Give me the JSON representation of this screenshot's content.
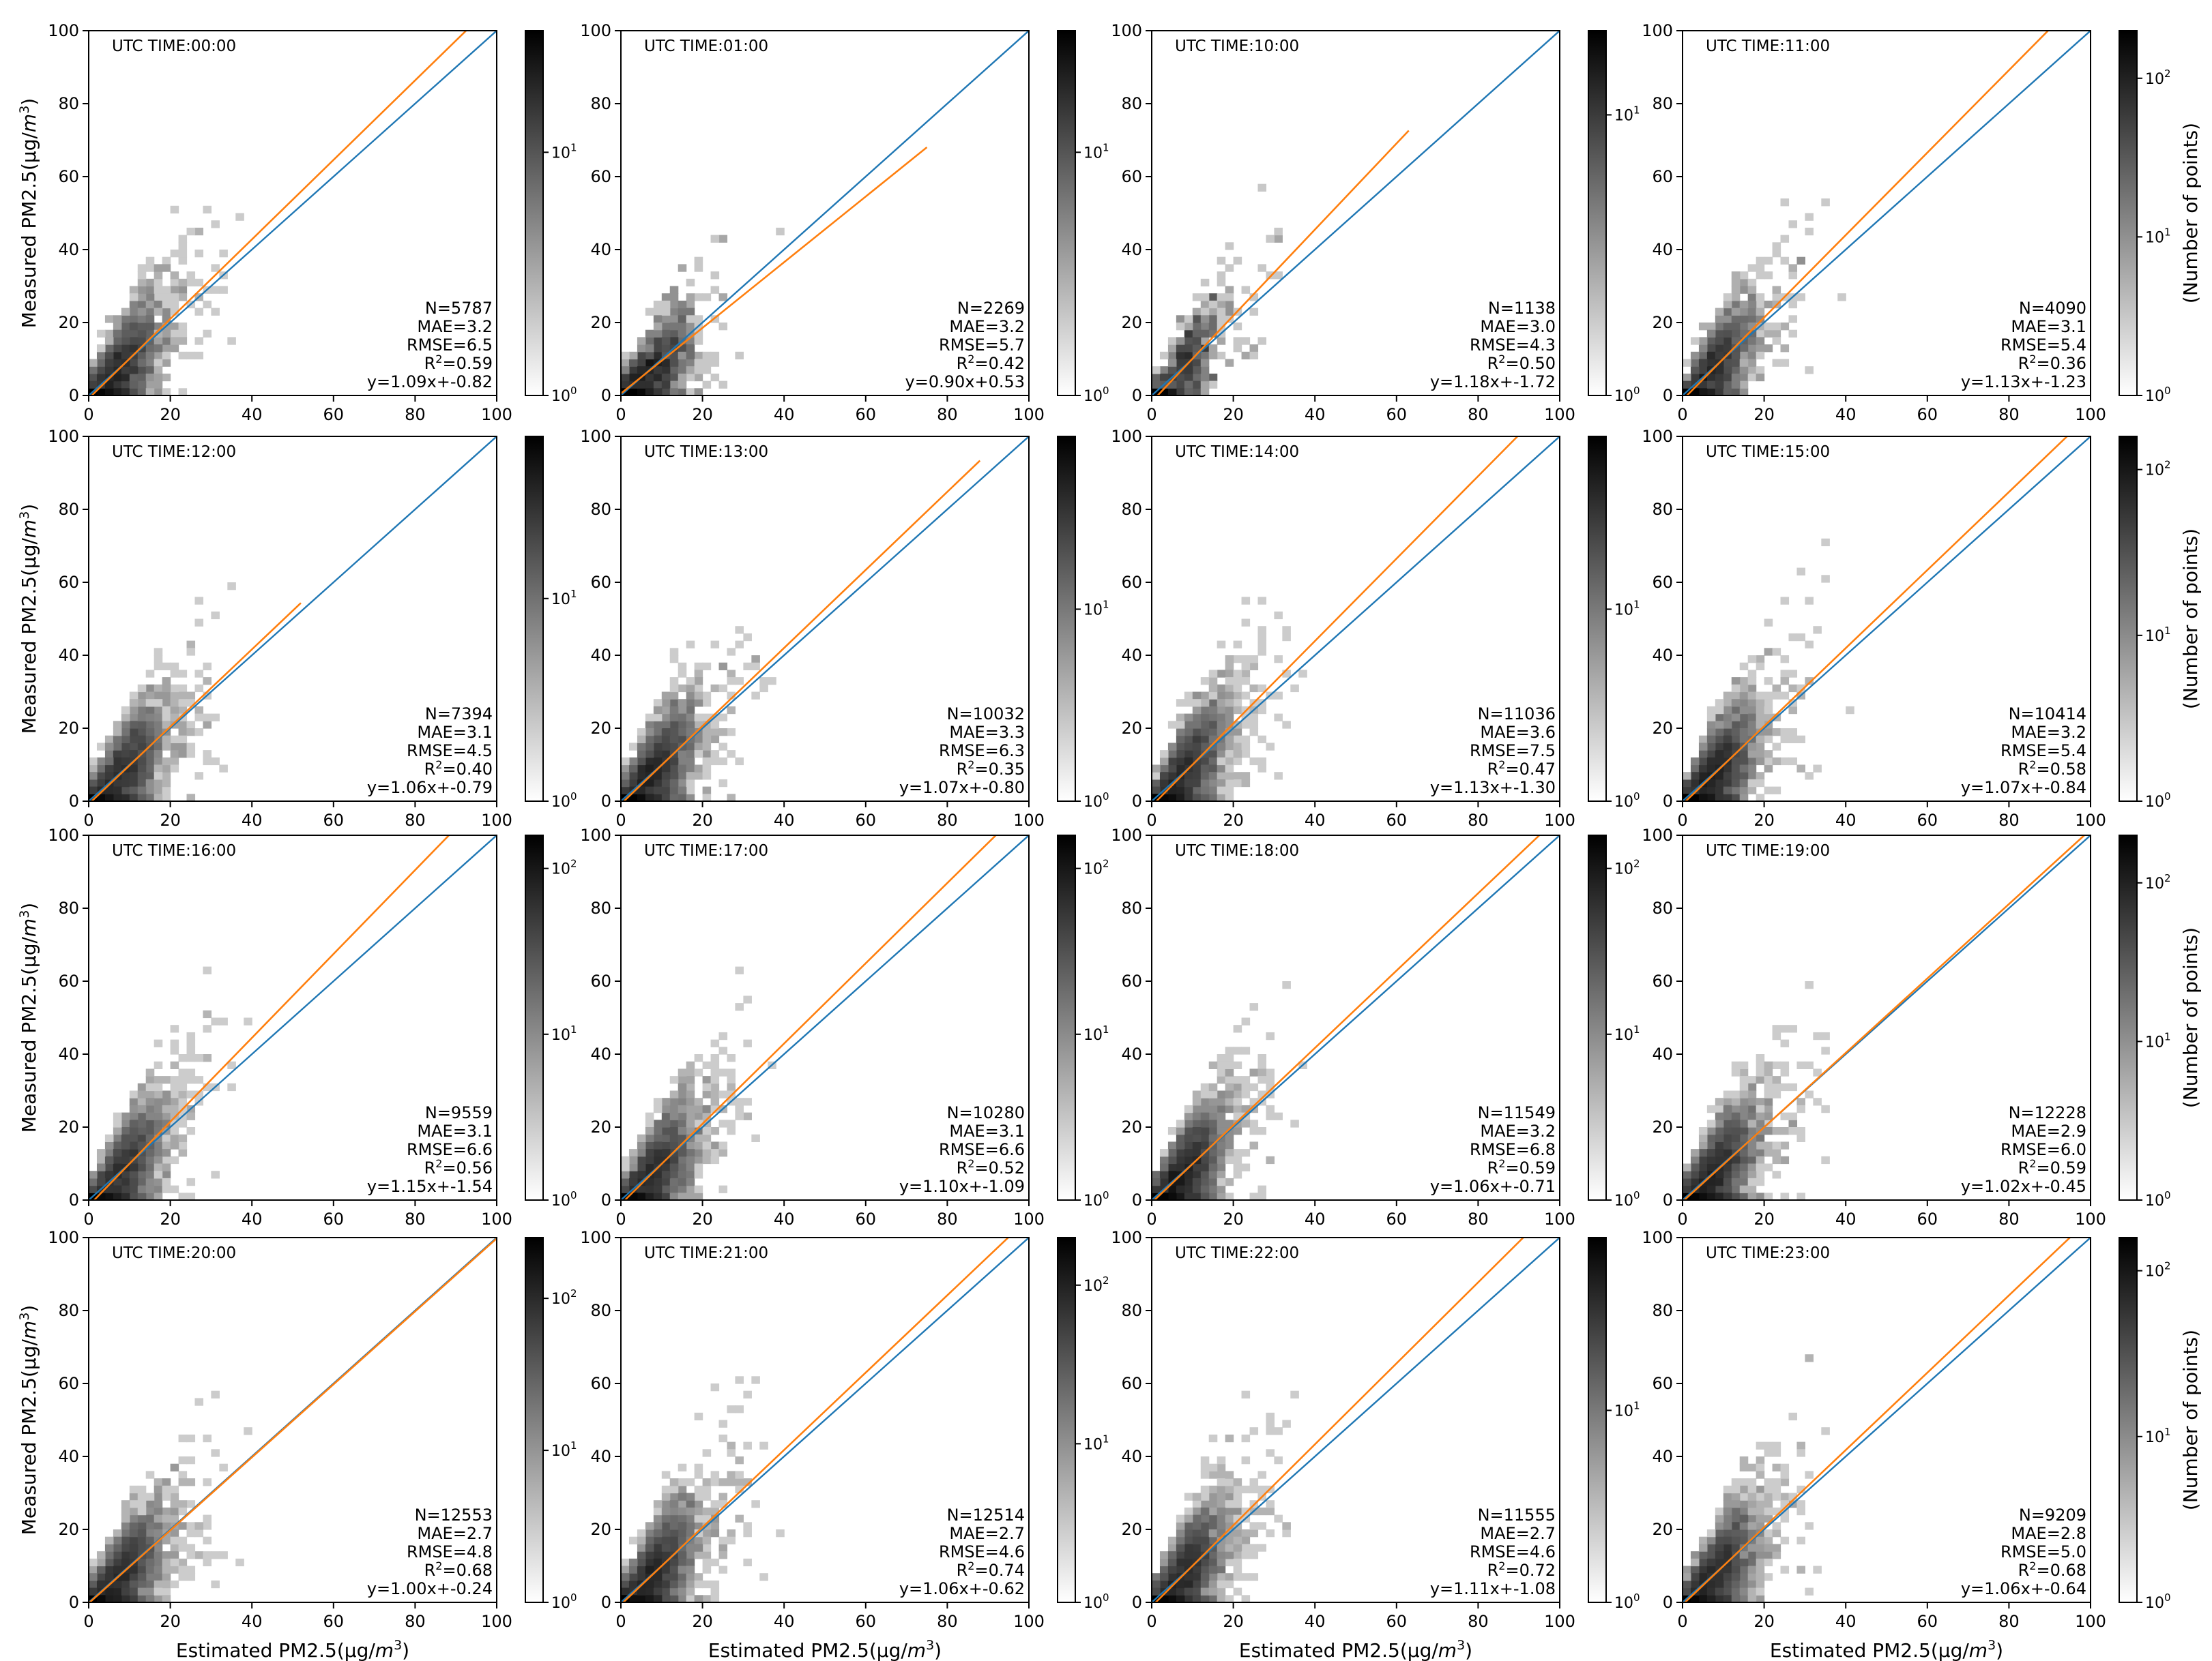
{
  "figure": {
    "xlabel_prefix": "Estimated PM2.5(µg/",
    "ylabel_prefix": "Measured PM2.5(µg/",
    "unit_m": "m",
    "unit_exp": "3",
    "unit_suffix": ")",
    "colorbar_label": "(Number of points)",
    "time_prefix": "UTC TIME:"
  },
  "colors": {
    "identity_line": "#1f77b4",
    "fit_line": "#ff7f0e",
    "density_dark": "#000000",
    "density_light": "#ffffff"
  },
  "chart_data": [
    {
      "type": "heatmap",
      "time": "00:00",
      "N": "5787",
      "MAE": "3.2",
      "RMSE": "6.5",
      "R2": "0.59",
      "eq": "y=1.09x+-0.82",
      "slope": 1.09,
      "intercept": -0.82,
      "fit_xmax": 100,
      "cb_ticks": [
        "10",
        "10",
        "10"
      ],
      "cb_exps": [
        "0",
        "1",
        ""
      ],
      "cb_max_exp": 1.5,
      "xlim": [
        0,
        100
      ],
      "ylim": [
        0,
        100
      ],
      "xticks": [
        0,
        20,
        40,
        60,
        80,
        100
      ],
      "yticks": [
        0,
        20,
        40,
        60,
        80,
        100
      ]
    },
    {
      "type": "heatmap",
      "time": "01:00",
      "N": "2269",
      "MAE": "3.2",
      "RMSE": "5.7",
      "R2": "0.42",
      "eq": "y=0.90x+0.53",
      "slope": 0.9,
      "intercept": 0.53,
      "fit_xmax": 75,
      "cb_ticks": [
        "10",
        "10"
      ],
      "cb_exps": [
        "0",
        "1"
      ],
      "cb_max_exp": 1.5,
      "xlim": [
        0,
        100
      ],
      "ylim": [
        0,
        100
      ],
      "xticks": [
        0,
        20,
        40,
        60,
        80,
        100
      ],
      "yticks": [
        0,
        20,
        40,
        60,
        80,
        100
      ]
    },
    {
      "type": "heatmap",
      "time": "10:00",
      "N": "1138",
      "MAE": "3.0",
      "RMSE": "4.3",
      "R2": "0.50",
      "eq": "y=1.18x+-1.72",
      "slope": 1.18,
      "intercept": -1.72,
      "fit_xmax": 63,
      "cb_ticks": [
        "10",
        "10"
      ],
      "cb_exps": [
        "0",
        "1"
      ],
      "cb_max_exp": 1.3,
      "xlim": [
        0,
        100
      ],
      "ylim": [
        0,
        100
      ],
      "xticks": [
        0,
        20,
        40,
        60,
        80,
        100
      ],
      "yticks": [
        0,
        20,
        40,
        60,
        80,
        100
      ]
    },
    {
      "type": "heatmap",
      "time": "11:00",
      "N": "4090",
      "MAE": "3.1",
      "RMSE": "5.4",
      "R2": "0.36",
      "eq": "y=1.13x+-1.23",
      "slope": 1.13,
      "intercept": -1.23,
      "fit_xmax": 100,
      "cb_ticks": [
        "10",
        "10",
        "10"
      ],
      "cb_exps": [
        "0",
        "1",
        "2"
      ],
      "cb_max_exp": 2.3,
      "xlim": [
        0,
        100
      ],
      "ylim": [
        0,
        100
      ],
      "xticks": [
        0,
        20,
        40,
        60,
        80,
        100
      ],
      "yticks": [
        0,
        20,
        40,
        60,
        80,
        100
      ]
    },
    {
      "type": "heatmap",
      "time": "12:00",
      "N": "7394",
      "MAE": "3.1",
      "RMSE": "4.5",
      "R2": "0.40",
      "eq": "y=1.06x+-0.79",
      "slope": 1.06,
      "intercept": -0.79,
      "fit_xmax": 52,
      "cb_ticks": [
        "10",
        "10"
      ],
      "cb_exps": [
        "0",
        "1"
      ],
      "cb_max_exp": 1.8,
      "xlim": [
        0,
        100
      ],
      "ylim": [
        0,
        100
      ],
      "xticks": [
        0,
        20,
        40,
        60,
        80,
        100
      ],
      "yticks": [
        0,
        20,
        40,
        60,
        80,
        100
      ]
    },
    {
      "type": "heatmap",
      "time": "13:00",
      "N": "10032",
      "MAE": "3.3",
      "RMSE": "6.3",
      "R2": "0.35",
      "eq": "y=1.07x+-0.80",
      "slope": 1.07,
      "intercept": -0.8,
      "fit_xmax": 88,
      "cb_ticks": [
        "10",
        "10"
      ],
      "cb_exps": [
        "0",
        "1"
      ],
      "cb_max_exp": 1.9,
      "xlim": [
        0,
        100
      ],
      "ylim": [
        0,
        100
      ],
      "xticks": [
        0,
        20,
        40,
        60,
        80,
        100
      ],
      "yticks": [
        0,
        20,
        40,
        60,
        80,
        100
      ]
    },
    {
      "type": "heatmap",
      "time": "14:00",
      "N": "11036",
      "MAE": "3.6",
      "RMSE": "7.5",
      "R2": "0.47",
      "eq": "y=1.13x+-1.30",
      "slope": 1.13,
      "intercept": -1.3,
      "fit_xmax": 100,
      "cb_ticks": [
        "10",
        "10"
      ],
      "cb_exps": [
        "0",
        "1"
      ],
      "cb_max_exp": 1.9,
      "xlim": [
        0,
        100
      ],
      "ylim": [
        0,
        100
      ],
      "xticks": [
        0,
        20,
        40,
        60,
        80,
        100
      ],
      "yticks": [
        0,
        20,
        40,
        60,
        80,
        100
      ]
    },
    {
      "type": "heatmap",
      "time": "15:00",
      "N": "10414",
      "MAE": "3.2",
      "RMSE": "5.4",
      "R2": "0.58",
      "eq": "y=1.07x+-0.84",
      "slope": 1.07,
      "intercept": -0.84,
      "fit_xmax": 100,
      "cb_ticks": [
        "10",
        "10",
        "10"
      ],
      "cb_exps": [
        "0",
        "1",
        "2"
      ],
      "cb_max_exp": 2.2,
      "xlim": [
        0,
        100
      ],
      "ylim": [
        0,
        100
      ],
      "xticks": [
        0,
        20,
        40,
        60,
        80,
        100
      ],
      "yticks": [
        0,
        20,
        40,
        60,
        80,
        100
      ]
    },
    {
      "type": "heatmap",
      "time": "16:00",
      "N": "9559",
      "MAE": "3.1",
      "RMSE": "6.6",
      "R2": "0.56",
      "eq": "y=1.15x+-1.54",
      "slope": 1.15,
      "intercept": -1.54,
      "fit_xmax": 100,
      "cb_ticks": [
        "10",
        "10",
        "10"
      ],
      "cb_exps": [
        "0",
        "1",
        "2"
      ],
      "cb_max_exp": 2.2,
      "xlim": [
        0,
        100
      ],
      "ylim": [
        0,
        100
      ],
      "xticks": [
        0,
        20,
        40,
        60,
        80,
        100
      ],
      "yticks": [
        0,
        20,
        40,
        60,
        80,
        100
      ]
    },
    {
      "type": "heatmap",
      "time": "17:00",
      "N": "10280",
      "MAE": "3.1",
      "RMSE": "6.6",
      "R2": "0.52",
      "eq": "y=1.10x+-1.09",
      "slope": 1.1,
      "intercept": -1.09,
      "fit_xmax": 100,
      "cb_ticks": [
        "10",
        "10",
        "10"
      ],
      "cb_exps": [
        "0",
        "1",
        "2"
      ],
      "cb_max_exp": 2.2,
      "xlim": [
        0,
        100
      ],
      "ylim": [
        0,
        100
      ],
      "xticks": [
        0,
        20,
        40,
        60,
        80,
        100
      ],
      "yticks": [
        0,
        20,
        40,
        60,
        80,
        100
      ]
    },
    {
      "type": "heatmap",
      "time": "18:00",
      "N": "11549",
      "MAE": "3.2",
      "RMSE": "6.8",
      "R2": "0.59",
      "eq": "y=1.06x+-0.71",
      "slope": 1.06,
      "intercept": -0.71,
      "fit_xmax": 100,
      "cb_ticks": [
        "10",
        "10",
        "10"
      ],
      "cb_exps": [
        "0",
        "1",
        "2"
      ],
      "cb_max_exp": 2.2,
      "xlim": [
        0,
        100
      ],
      "ylim": [
        0,
        100
      ],
      "xticks": [
        0,
        20,
        40,
        60,
        80,
        100
      ],
      "yticks": [
        0,
        20,
        40,
        60,
        80,
        100
      ]
    },
    {
      "type": "heatmap",
      "time": "19:00",
      "N": "12228",
      "MAE": "2.9",
      "RMSE": "6.0",
      "R2": "0.59",
      "eq": "y=1.02x+-0.45",
      "slope": 1.02,
      "intercept": -0.45,
      "fit_xmax": 100,
      "cb_ticks": [
        "10",
        "10",
        "10"
      ],
      "cb_exps": [
        "0",
        "1",
        "2"
      ],
      "cb_max_exp": 2.3,
      "xlim": [
        0,
        100
      ],
      "ylim": [
        0,
        100
      ],
      "xticks": [
        0,
        20,
        40,
        60,
        80,
        100
      ],
      "yticks": [
        0,
        20,
        40,
        60,
        80,
        100
      ]
    },
    {
      "type": "heatmap",
      "time": "20:00",
      "N": "12553",
      "MAE": "2.7",
      "RMSE": "4.8",
      "R2": "0.68",
      "eq": "y=1.00x+-0.24",
      "slope": 1.0,
      "intercept": -0.24,
      "fit_xmax": 100,
      "cb_ticks": [
        "10",
        "10",
        "10"
      ],
      "cb_exps": [
        "0",
        "1",
        "2"
      ],
      "cb_max_exp": 2.4,
      "xlim": [
        0,
        100
      ],
      "ylim": [
        0,
        100
      ],
      "xticks": [
        0,
        20,
        40,
        60,
        80,
        100
      ],
      "yticks": [
        0,
        20,
        40,
        60,
        80,
        100
      ]
    },
    {
      "type": "heatmap",
      "time": "21:00",
      "N": "12514",
      "MAE": "2.7",
      "RMSE": "4.6",
      "R2": "0.74",
      "eq": "y=1.06x+-0.62",
      "slope": 1.06,
      "intercept": -0.62,
      "fit_xmax": 100,
      "cb_ticks": [
        "10",
        "10",
        "10"
      ],
      "cb_exps": [
        "0",
        "1",
        "2"
      ],
      "cb_max_exp": 2.3,
      "xlim": [
        0,
        100
      ],
      "ylim": [
        0,
        100
      ],
      "xticks": [
        0,
        20,
        40,
        60,
        80,
        100
      ],
      "yticks": [
        0,
        20,
        40,
        60,
        80,
        100
      ]
    },
    {
      "type": "heatmap",
      "time": "22:00",
      "N": "11555",
      "MAE": "2.7",
      "RMSE": "4.6",
      "R2": "0.72",
      "eq": "y=1.11x+-1.08",
      "slope": 1.11,
      "intercept": -1.08,
      "fit_xmax": 100,
      "cb_ticks": [
        "10",
        "10"
      ],
      "cb_exps": [
        "0",
        "1"
      ],
      "cb_max_exp": 1.9,
      "xlim": [
        0,
        100
      ],
      "ylim": [
        0,
        100
      ],
      "xticks": [
        0,
        20,
        40,
        60,
        80,
        100
      ],
      "yticks": [
        0,
        20,
        40,
        60,
        80,
        100
      ]
    },
    {
      "type": "heatmap",
      "time": "23:00",
      "N": "9209",
      "MAE": "2.8",
      "RMSE": "5.0",
      "R2": "0.68",
      "eq": "y=1.06x+-0.64",
      "slope": 1.06,
      "intercept": -0.64,
      "fit_xmax": 100,
      "cb_ticks": [
        "10",
        "10",
        "10"
      ],
      "cb_exps": [
        "0",
        "1",
        "2"
      ],
      "cb_max_exp": 2.2,
      "xlim": [
        0,
        100
      ],
      "ylim": [
        0,
        100
      ],
      "xticks": [
        0,
        20,
        40,
        60,
        80,
        100
      ],
      "yticks": [
        0,
        20,
        40,
        60,
        80,
        100
      ]
    }
  ]
}
